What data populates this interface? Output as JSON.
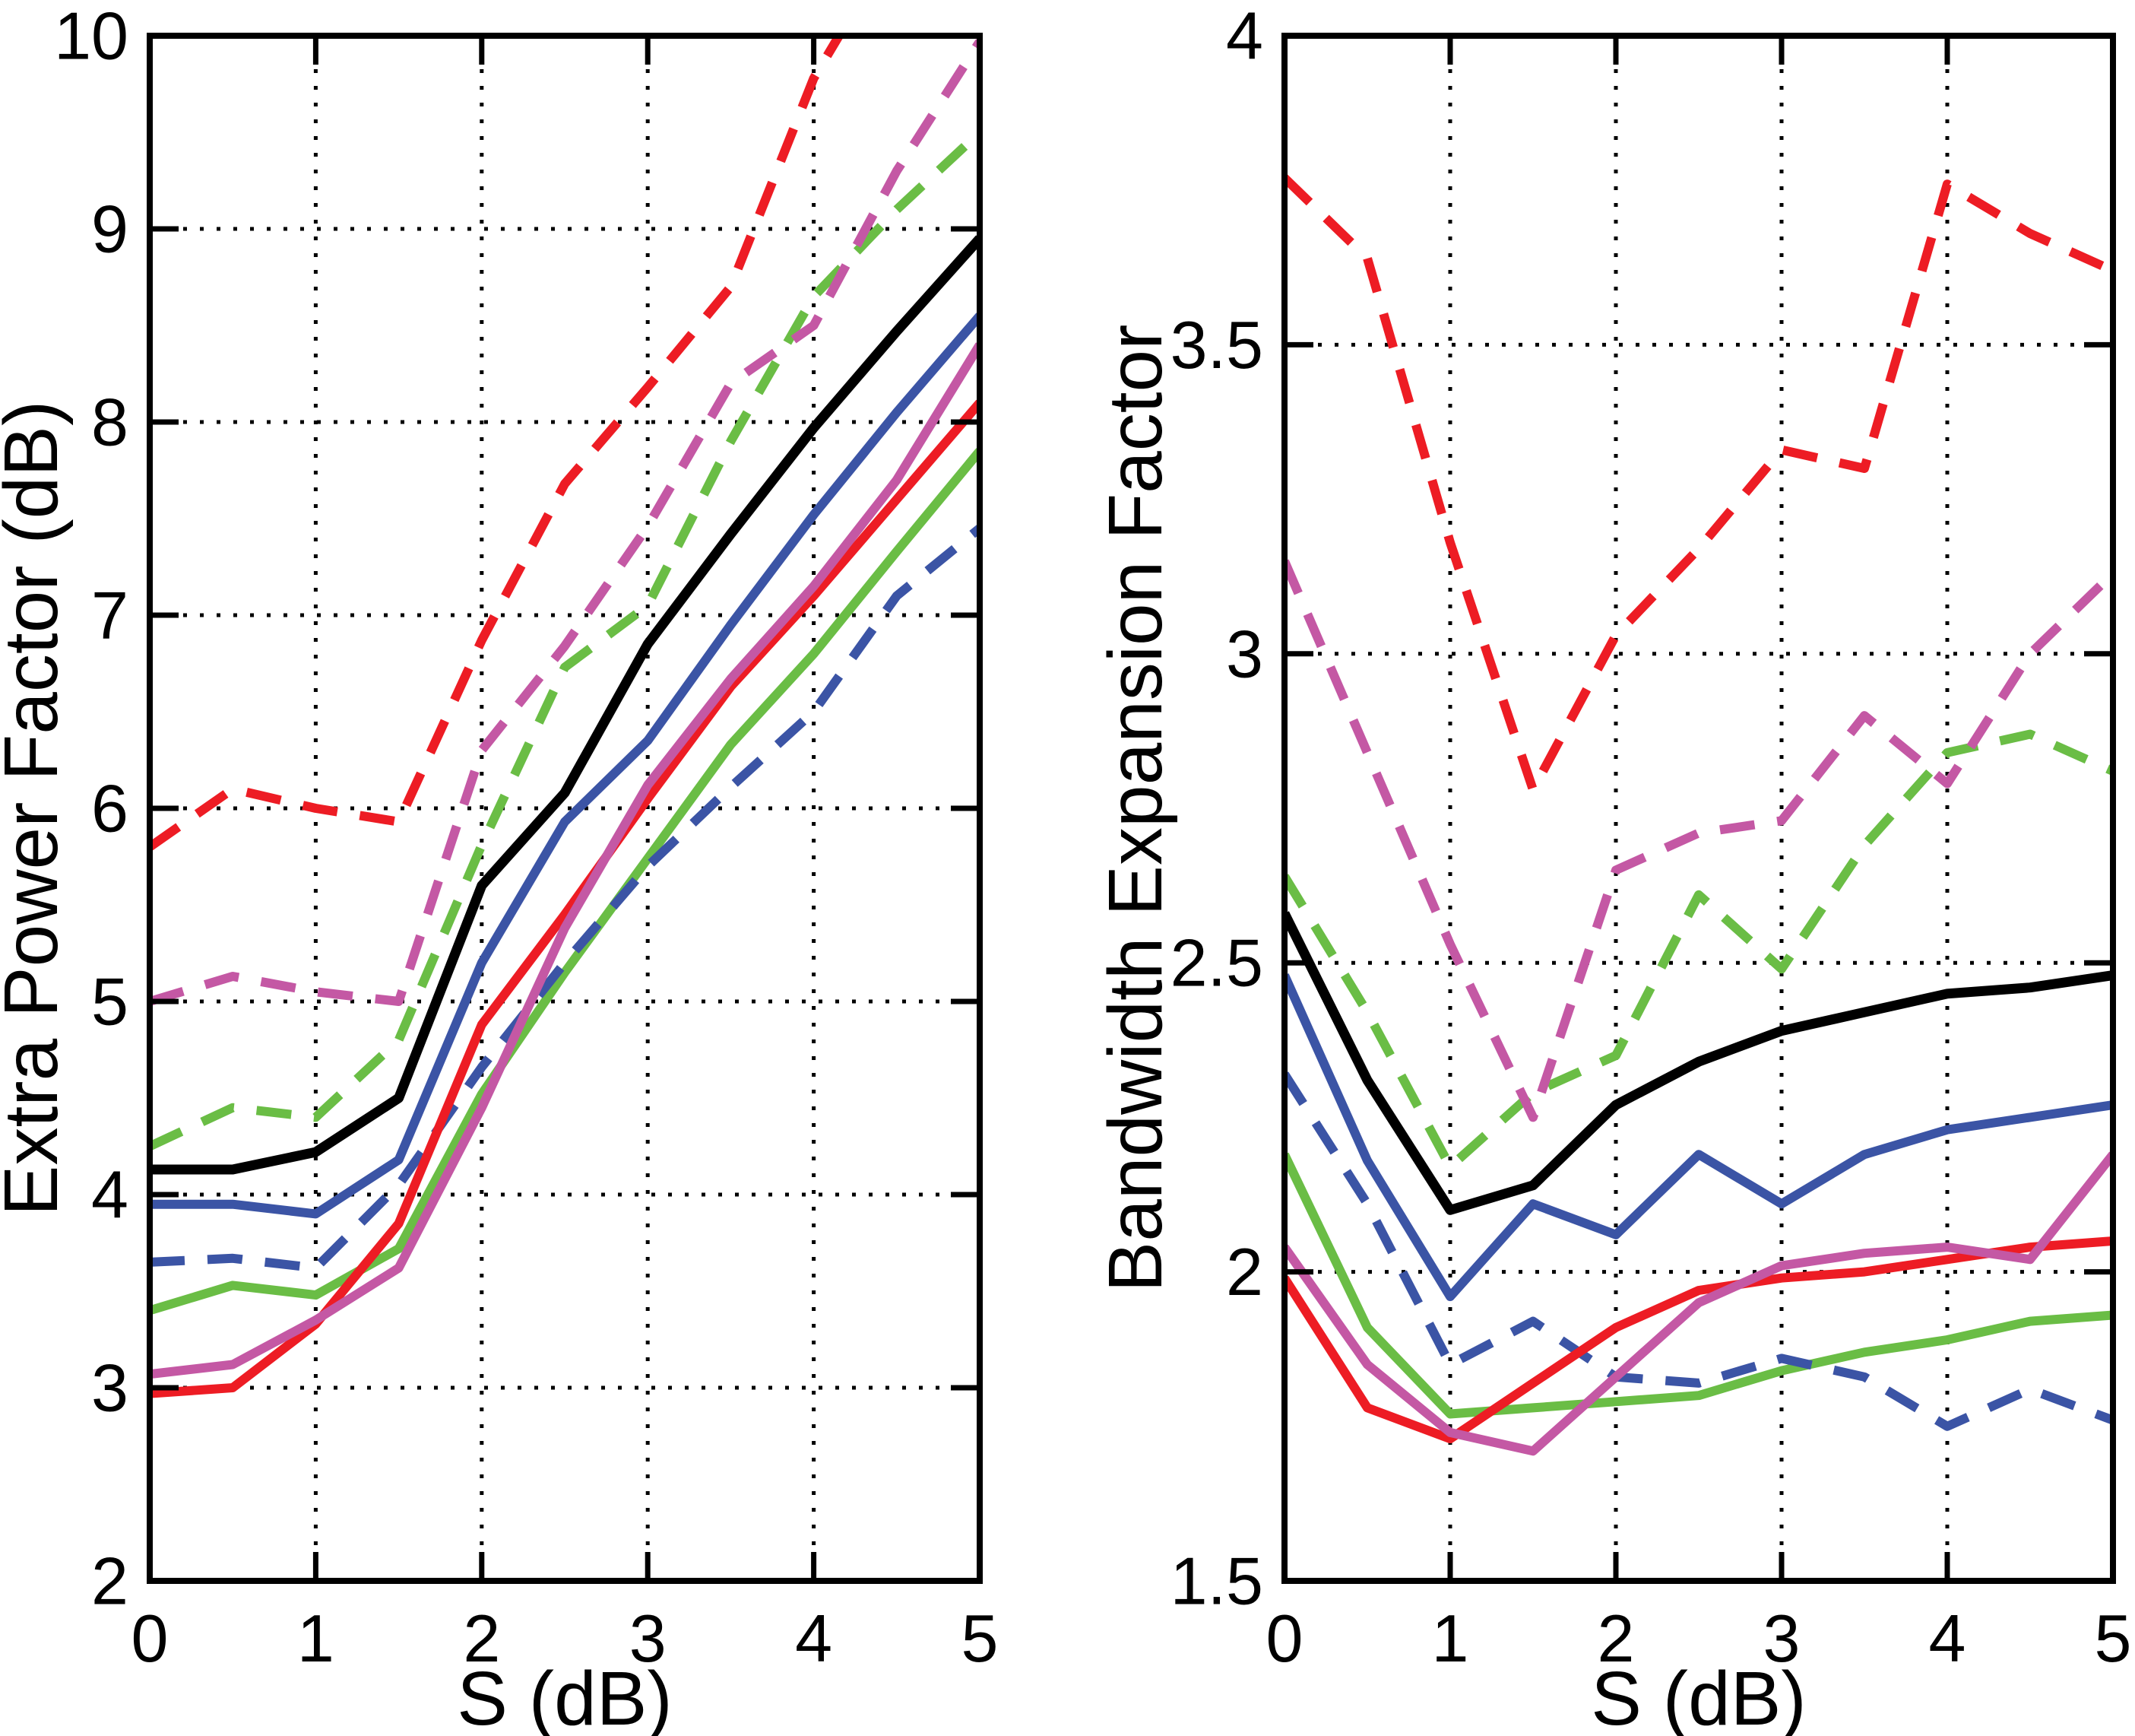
{
  "figure": {
    "background": "#ffffff",
    "colors": {
      "red": "#ED1C24",
      "magenta": "#C458A4",
      "green": "#6ABD45",
      "blue": "#3B54A5",
      "black": "#000000"
    }
  },
  "chart_data": [
    {
      "type": "line",
      "title": "",
      "xlabel": "S (dB)",
      "ylabel": "Extra Power Factor (dB)",
      "xlim": [
        0,
        5
      ],
      "ylim": [
        2,
        10
      ],
      "grid": true,
      "legend_position": "none",
      "xticks": [
        0,
        1,
        2,
        3,
        4,
        5
      ],
      "xticklabels": [
        "0",
        "1",
        "2",
        "3",
        "4",
        "5"
      ],
      "yticks": [
        2,
        3,
        4,
        5,
        6,
        7,
        8,
        9,
        10
      ],
      "yticklabels": [
        "2",
        "3",
        "4",
        "5",
        "6",
        "7",
        "8",
        "9",
        "10"
      ],
      "x": [
        0,
        0.5,
        1,
        1.5,
        2,
        2.5,
        3,
        3.5,
        4,
        4.5,
        5
      ],
      "series": [
        {
          "name": "green-solid",
          "color": "#6ABD45",
          "dashed": false,
          "values": [
            3.4,
            3.53,
            3.48,
            3.72,
            4.52,
            5.15,
            5.74,
            6.33,
            6.8,
            7.33,
            7.85
          ]
        },
        {
          "name": "blue-dashed",
          "color": "#3B54A5",
          "dashed": true,
          "values": [
            3.65,
            3.67,
            3.62,
            4.05,
            4.66,
            5.2,
            5.7,
            6.11,
            6.5,
            7.1,
            7.45
          ]
        },
        {
          "name": "red-solid",
          "color": "#ED1C24",
          "dashed": false,
          "values": [
            2.97,
            3.0,
            3.33,
            3.85,
            4.88,
            5.45,
            6.05,
            6.63,
            7.1,
            7.6,
            8.1
          ]
        },
        {
          "name": "magenta-solid",
          "color": "#C458A4",
          "dashed": false,
          "values": [
            3.07,
            3.12,
            3.35,
            3.62,
            4.45,
            5.38,
            6.12,
            6.67,
            7.15,
            7.7,
            8.4
          ]
        },
        {
          "name": "blue-solid",
          "color": "#3B54A5",
          "dashed": false,
          "values": [
            3.95,
            3.95,
            3.9,
            4.18,
            5.2,
            5.93,
            6.35,
            6.95,
            7.52,
            8.05,
            8.55
          ]
        },
        {
          "name": "black-solid",
          "color": "#000000",
          "dashed": false,
          "values": [
            4.13,
            4.13,
            4.22,
            4.5,
            5.6,
            6.08,
            6.85,
            7.42,
            7.97,
            8.47,
            8.95
          ]
        },
        {
          "name": "green-dashed",
          "color": "#6ABD45",
          "dashed": true,
          "values": [
            4.25,
            4.45,
            4.4,
            4.8,
            5.81,
            6.73,
            7.05,
            7.9,
            8.65,
            9.1,
            9.5
          ]
        },
        {
          "name": "magenta-dashed",
          "color": "#C458A4",
          "dashed": true,
          "values": [
            5.0,
            5.13,
            5.05,
            5.0,
            6.3,
            6.84,
            7.46,
            8.2,
            8.5,
            9.3,
            9.97
          ]
        },
        {
          "name": "red-dashed",
          "color": "#ED1C24",
          "dashed": true,
          "values": [
            5.8,
            6.1,
            6.0,
            5.93,
            6.87,
            7.68,
            8.18,
            8.7,
            9.78,
            10.5,
            11.2
          ]
        }
      ]
    },
    {
      "type": "line",
      "title": "",
      "xlabel": "S (dB)",
      "ylabel": "Bandwidth Expansion Factor",
      "xlim": [
        0,
        5
      ],
      "ylim": [
        1.5,
        4
      ],
      "grid": true,
      "legend_position": "none",
      "xticks": [
        0,
        1,
        2,
        3,
        4,
        5
      ],
      "xticklabels": [
        "0",
        "1",
        "2",
        "3",
        "4",
        "5"
      ],
      "yticks": [
        1.5,
        2,
        2.5,
        3,
        3.5,
        4
      ],
      "yticklabels": [
        "1.5",
        "2",
        "2.5",
        "3",
        "3.5",
        "4"
      ],
      "x": [
        0,
        0.5,
        1,
        1.5,
        2,
        2.5,
        3,
        3.5,
        4,
        4.5,
        5
      ],
      "series": [
        {
          "name": "green-solid",
          "color": "#6ABD45",
          "dashed": false,
          "values": [
            2.19,
            1.91,
            1.77,
            1.78,
            1.79,
            1.8,
            1.84,
            1.87,
            1.89,
            1.92,
            1.93
          ]
        },
        {
          "name": "blue-dashed",
          "color": "#3B54A5",
          "dashed": true,
          "values": [
            2.32,
            2.11,
            1.85,
            1.92,
            1.83,
            1.82,
            1.86,
            1.83,
            1.75,
            1.81,
            1.76
          ]
        },
        {
          "name": "red-solid",
          "color": "#ED1C24",
          "dashed": false,
          "values": [
            1.99,
            1.78,
            1.73,
            1.82,
            1.91,
            1.97,
            1.99,
            2.0,
            2.02,
            2.04,
            2.05
          ]
        },
        {
          "name": "magenta-solid",
          "color": "#C458A4",
          "dashed": false,
          "values": [
            2.04,
            1.85,
            1.74,
            1.71,
            1.83,
            1.95,
            2.01,
            2.03,
            2.04,
            2.02,
            2.19
          ]
        },
        {
          "name": "blue-solid",
          "color": "#3B54A5",
          "dashed": false,
          "values": [
            2.48,
            2.18,
            1.96,
            2.11,
            2.06,
            2.19,
            2.11,
            2.19,
            2.23,
            2.25,
            2.27
          ]
        },
        {
          "name": "black-solid",
          "color": "#000000",
          "dashed": false,
          "values": [
            2.58,
            2.31,
            2.1,
            2.14,
            2.27,
            2.34,
            2.39,
            2.42,
            2.45,
            2.46,
            2.48
          ]
        },
        {
          "name": "green-dashed",
          "color": "#6ABD45",
          "dashed": true,
          "values": [
            2.64,
            2.42,
            2.17,
            2.29,
            2.35,
            2.61,
            2.49,
            2.69,
            2.84,
            2.87,
            2.81
          ]
        },
        {
          "name": "magenta-dashed",
          "color": "#C458A4",
          "dashed": true,
          "values": [
            3.15,
            2.84,
            2.53,
            2.25,
            2.65,
            2.71,
            2.73,
            2.9,
            2.79,
            3.0,
            3.13
          ]
        },
        {
          "name": "red-dashed",
          "color": "#ED1C24",
          "dashed": true,
          "values": [
            3.77,
            3.64,
            3.18,
            2.78,
            3.03,
            3.17,
            3.33,
            3.3,
            3.76,
            3.68,
            3.62
          ]
        }
      ]
    }
  ]
}
